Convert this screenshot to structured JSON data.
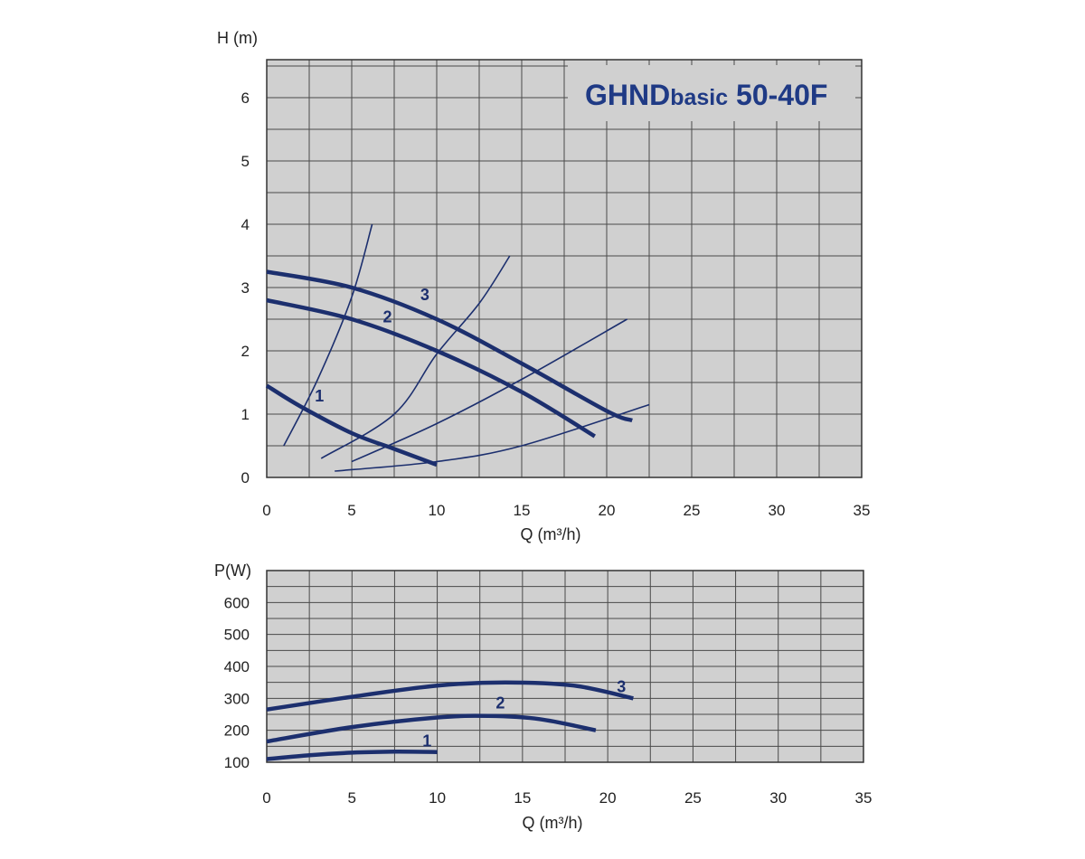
{
  "colors": {
    "plot_bg": "#d0d0d0",
    "grid": "#4a4a4a",
    "curve": "#1c2f6e",
    "title": "#1f3a85"
  },
  "chart_data": [
    {
      "type": "line",
      "title": "GHNDbasic 50-40F",
      "title_parts": {
        "main": "GHND",
        "sub": "basic",
        "tail": " 50-40F"
      },
      "xlabel": "Q (m³/h)",
      "ylabel": "H (m)",
      "xlim": [
        0,
        35
      ],
      "ylim": [
        0,
        6.6
      ],
      "xticks": [
        0,
        5,
        10,
        15,
        20,
        25,
        30,
        35
      ],
      "yticks": [
        0,
        1,
        2,
        3,
        4,
        5,
        6
      ],
      "grid": true,
      "series": [
        {
          "name": "1",
          "style": "thick",
          "x": [
            0,
            2,
            5,
            7.5,
            10
          ],
          "y": [
            1.45,
            1.12,
            0.7,
            0.45,
            0.2
          ]
        },
        {
          "name": "2",
          "style": "thick",
          "x": [
            0,
            5,
            10,
            15,
            19.3
          ],
          "y": [
            2.8,
            2.5,
            2.0,
            1.35,
            0.65
          ]
        },
        {
          "name": "3",
          "style": "thick",
          "x": [
            0,
            5,
            10,
            15,
            20,
            21.5
          ],
          "y": [
            3.25,
            3.0,
            2.5,
            1.8,
            1.05,
            0.9
          ]
        },
        {
          "name": "",
          "style": "thin",
          "x": [
            1,
            3,
            5,
            6.2
          ],
          "y": [
            0.5,
            1.55,
            2.85,
            4.0
          ]
        },
        {
          "name": "",
          "style": "thin",
          "x": [
            3.2,
            7.5,
            10,
            12.5,
            14.3
          ],
          "y": [
            0.3,
            1.0,
            1.95,
            2.75,
            3.5
          ]
        },
        {
          "name": "",
          "style": "thin",
          "x": [
            5,
            10,
            15,
            21.2
          ],
          "y": [
            0.25,
            0.85,
            1.55,
            2.5
          ]
        },
        {
          "name": "",
          "style": "thin",
          "x": [
            4,
            10,
            15,
            22.5
          ],
          "y": [
            0.1,
            0.25,
            0.5,
            1.15
          ]
        }
      ],
      "annotations": [
        {
          "text": "1",
          "x": 3.1,
          "y": 1.2
        },
        {
          "text": "2",
          "x": 7.1,
          "y": 2.45
        },
        {
          "text": "3",
          "x": 9.3,
          "y": 2.8
        }
      ]
    },
    {
      "type": "line",
      "title": "",
      "xlabel": "Q (m³/h)",
      "ylabel": "P(W)",
      "xlim": [
        0,
        35
      ],
      "ylim": [
        100,
        700
      ],
      "xticks": [
        0,
        5,
        10,
        15,
        20,
        25,
        30,
        35
      ],
      "yticks": [
        100,
        200,
        300,
        400,
        500,
        600
      ],
      "grid": true,
      "series": [
        {
          "name": "1",
          "style": "thick",
          "x": [
            0,
            2.5,
            5,
            7.5,
            10
          ],
          "y": [
            110,
            122,
            130,
            133,
            132
          ]
        },
        {
          "name": "2",
          "style": "thick",
          "x": [
            0,
            5,
            10,
            13,
            16,
            19.3
          ],
          "y": [
            165,
            210,
            240,
            245,
            235,
            200
          ]
        },
        {
          "name": "3",
          "style": "thick",
          "x": [
            0,
            5,
            10,
            14,
            18,
            21.5
          ],
          "y": [
            265,
            305,
            340,
            350,
            340,
            300
          ]
        }
      ],
      "annotations": [
        {
          "text": "1",
          "x": 9.4,
          "y": 150
        },
        {
          "text": "2",
          "x": 13.7,
          "y": 268
        },
        {
          "text": "3",
          "x": 20.8,
          "y": 320
        }
      ]
    }
  ]
}
